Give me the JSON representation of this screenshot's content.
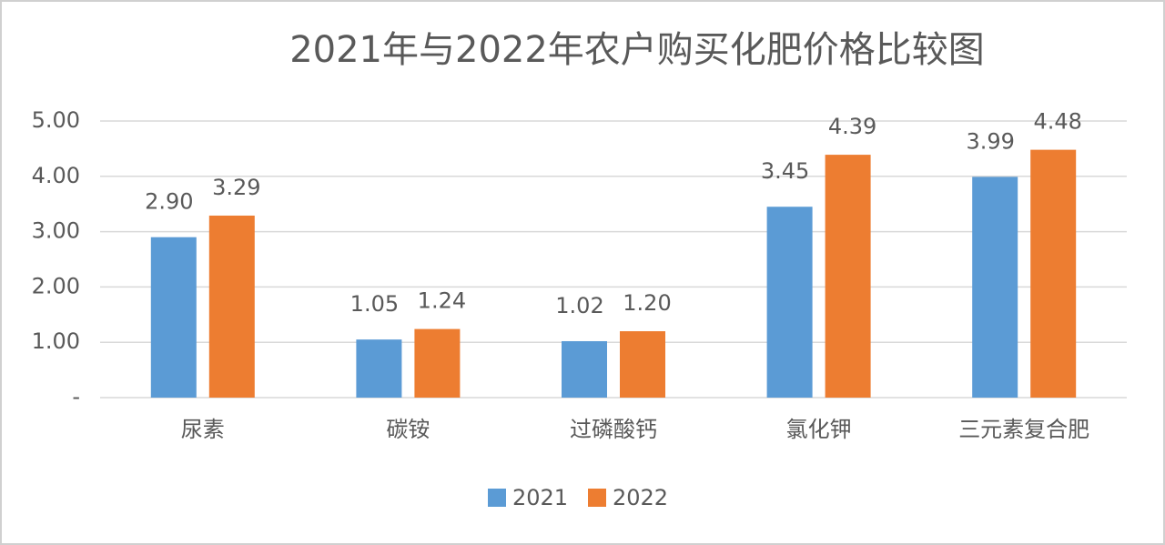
{
  "chart_data": {
    "type": "bar",
    "title": "2021年与2022年农户购买化肥价格比较图",
    "categories": [
      "尿素",
      "碳铵",
      "过磷酸钙",
      "氯化钾",
      "三元素复合肥"
    ],
    "series": [
      {
        "name": "2021",
        "color": "#5b9bd5",
        "values": [
          2.9,
          1.05,
          1.02,
          3.45,
          3.99
        ],
        "value_labels": [
          "2.90",
          "1.05",
          "1.02",
          "3.45",
          "3.99"
        ]
      },
      {
        "name": "2022",
        "color": "#ed7d31",
        "values": [
          3.29,
          1.24,
          1.2,
          4.39,
          4.48
        ],
        "value_labels": [
          "3.29",
          "1.24",
          "1.20",
          "4.39",
          "4.48"
        ]
      }
    ],
    "ylim": [
      0,
      5
    ],
    "yticks": [
      {
        "value": 0,
        "label": "-"
      },
      {
        "value": 1,
        "label": "1.00"
      },
      {
        "value": 2,
        "label": "2.00"
      },
      {
        "value": 3,
        "label": "3.00"
      },
      {
        "value": 4,
        "label": "4.00"
      },
      {
        "value": 5,
        "label": "5.00"
      }
    ],
    "grid": true,
    "legend": "bottom"
  }
}
